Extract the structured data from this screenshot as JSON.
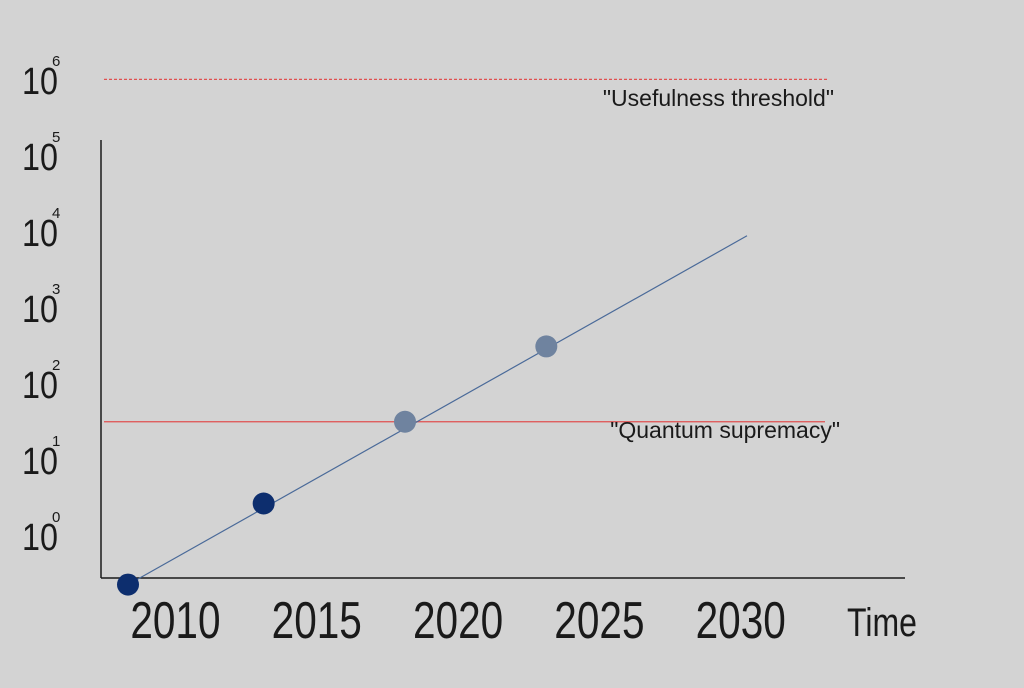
{
  "chart_data": {
    "type": "scatter",
    "xlabel": "Time",
    "ylabel": "",
    "title": "",
    "xlim": [
      2008.5,
      2036
    ],
    "ylim": [
      0.1,
      1000000
    ],
    "y_scale": "log",
    "grid": false,
    "x_ticks": [
      {
        "value": 2010,
        "label": "2010"
      },
      {
        "value": 2015,
        "label": "2015"
      },
      {
        "value": 2020,
        "label": "2020"
      },
      {
        "value": 2025,
        "label": "2025"
      },
      {
        "value": 2030,
        "label": "2030"
      }
    ],
    "y_ticks": [
      {
        "value": 1,
        "base": "10",
        "exp": "0"
      },
      {
        "value": 10,
        "base": "10",
        "exp": "1"
      },
      {
        "value": 100,
        "base": "10",
        "exp": "2"
      },
      {
        "value": 1000,
        "base": "10",
        "exp": "3"
      },
      {
        "value": 10000,
        "base": "10",
        "exp": "4"
      },
      {
        "value": 100000,
        "base": "10",
        "exp": "5"
      },
      {
        "value": 1000000,
        "base": "10",
        "exp": "6"
      }
    ],
    "points": [
      {
        "x": 2009.1,
        "y": 0.18,
        "color": "#0d2e6e"
      },
      {
        "x": 2013.9,
        "y": 2.1,
        "color": "#0d2e6e"
      },
      {
        "x": 2018.9,
        "y": 25,
        "color": "#6f839f"
      },
      {
        "x": 2023.9,
        "y": 245,
        "color": "#6f839f"
      }
    ],
    "trend_line": {
      "x": [
        2009.1,
        2031
      ],
      "y": [
        0.18,
        7000
      ],
      "color": "#4a6a99"
    },
    "thresholds": [
      {
        "label": "\"Usefulness threshold\"",
        "y": 800000,
        "style": "dashed",
        "color": "#e05050"
      },
      {
        "label": "\"Quantum supremacy\"",
        "y": 25,
        "style": "solid",
        "color": "#e05050"
      }
    ]
  }
}
